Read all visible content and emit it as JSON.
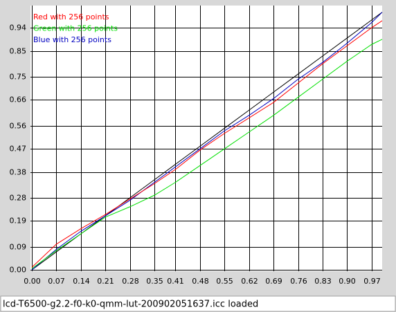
{
  "chart_data": {
    "type": "line",
    "x": [
      0,
      0.07,
      0.14,
      0.21,
      0.28,
      0.35,
      0.41,
      0.48,
      0.55,
      0.62,
      0.69,
      0.76,
      0.83,
      0.9,
      0.97,
      1.0
    ],
    "series": [
      {
        "name": "Red with 256 points",
        "color": "#ff0000",
        "values": [
          0.01,
          0.1,
          0.16,
          0.215,
          0.275,
          0.335,
          0.39,
          0.465,
          0.53,
          0.59,
          0.65,
          0.725,
          0.8,
          0.87,
          0.94,
          0.967
        ]
      },
      {
        "name": "Green with 256 points",
        "color": "#00e000",
        "values": [
          0.005,
          0.075,
          0.14,
          0.205,
          0.245,
          0.29,
          0.34,
          0.405,
          0.47,
          0.535,
          0.6,
          0.67,
          0.74,
          0.81,
          0.875,
          0.895
        ]
      },
      {
        "name": "Blue with 256 points",
        "color": "#0000c0",
        "values": [
          0.0,
          0.08,
          0.15,
          0.21,
          0.27,
          0.34,
          0.4,
          0.47,
          0.54,
          0.6,
          0.665,
          0.74,
          0.805,
          0.88,
          0.96,
          1.0
        ]
      },
      {
        "color": "#000000",
        "values": [
          0,
          0.07,
          0.14,
          0.21,
          0.28,
          0.35,
          0.41,
          0.48,
          0.55,
          0.62,
          0.69,
          0.76,
          0.83,
          0.9,
          0.97,
          1.0
        ]
      }
    ],
    "xlim": [
      -0.004,
      1.0
    ],
    "ylim": [
      -0.005,
      1.026
    ],
    "xticks": [
      {
        "value": 0,
        "label": "0.00"
      },
      0.07,
      0.14,
      0.21,
      0.28,
      0.35,
      0.41,
      0.48,
      0.55,
      0.62,
      0.69,
      0.76,
      0.83,
      {
        "value": 0.9,
        "label": "0.90"
      },
      0.97
    ],
    "yticks": [
      {
        "value": 0,
        "label": "0.00"
      },
      0.09,
      0.19,
      0.28,
      0.38,
      0.47,
      0.56,
      0.66,
      0.75,
      0.85,
      0.94
    ],
    "grid": true,
    "legend": "top-left"
  },
  "status_text": "lcd-T6500-g2.2-f0-k0-qmm-lut-200902051637.icc loaded"
}
